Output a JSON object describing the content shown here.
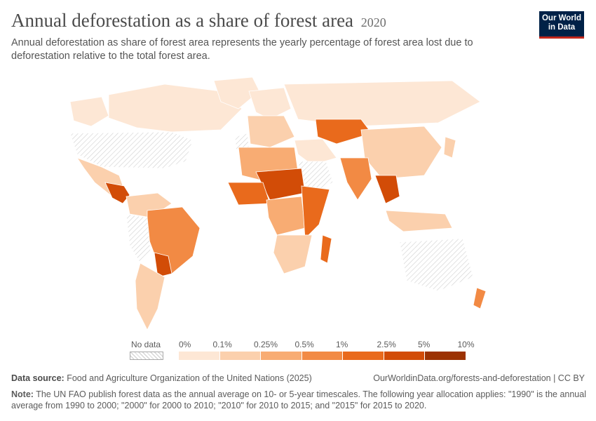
{
  "header": {
    "title": "Annual deforestation as a share of forest area",
    "year": "2020",
    "subtitle": "Annual deforestation as share of forest area represents the yearly percentage of forest area lost due to deforestation relative to the total forest area.",
    "logo_line1": "Our World",
    "logo_line2": "in Data"
  },
  "legend": {
    "no_data_label": "No data",
    "bins": [
      {
        "label": "0%",
        "color": "#fde7d5"
      },
      {
        "label": "0.1%",
        "color": "#fbd0ad"
      },
      {
        "label": "0.25%",
        "color": "#f8ac73"
      },
      {
        "label": "0.5%",
        "color": "#f28a44"
      },
      {
        "label": "1%",
        "color": "#e96a1c"
      },
      {
        "label": "2.5%",
        "color": "#d24c07"
      },
      {
        "label": "5%",
        "color": "#9c3202"
      }
    ],
    "last_label": "10%"
  },
  "footer": {
    "source_label": "Data source:",
    "source_text": "Food and Agriculture Organization of the United Nations (2025)",
    "url": "OurWorldinData.org/forests-and-deforestation | CC BY",
    "note_label": "Note:",
    "note_text": "The UN FAO publish forest data as the annual average on 10- or 5-year timescales. The following year allocation applies: \"1990\" is the annual average from 1990 to 2000; \"2000\" for 2000 to 2010; \"2010\" for 2010 to 2015; and \"2015\" for 2015 to 2020."
  },
  "map": {
    "regions": [
      {
        "name": "canada",
        "color": "#fde7d5"
      },
      {
        "name": "alaska",
        "color": "#fde7d5"
      },
      {
        "name": "greenland",
        "color": "#fde7d5"
      },
      {
        "name": "usa",
        "color": "no-data"
      },
      {
        "name": "mexico",
        "color": "#fbd0ad"
      },
      {
        "name": "central-america",
        "color": "#d24c07"
      },
      {
        "name": "colombia-venezuela",
        "color": "#fbd0ad"
      },
      {
        "name": "brazil",
        "color": "#f28a44"
      },
      {
        "name": "peru-bolivia",
        "color": "no-data"
      },
      {
        "name": "paraguay",
        "color": "#d24c07"
      },
      {
        "name": "argentina-chile",
        "color": "#fbd0ad"
      },
      {
        "name": "europe-north",
        "color": "#fde7d5"
      },
      {
        "name": "europe-south",
        "color": "#fbd0ad"
      },
      {
        "name": "iberia",
        "color": "no-data"
      },
      {
        "name": "russia",
        "color": "#fde7d5"
      },
      {
        "name": "kazakhstan",
        "color": "#e96a1c"
      },
      {
        "name": "china",
        "color": "#fbd0ad"
      },
      {
        "name": "middle-east",
        "color": "#fde7d5"
      },
      {
        "name": "arabia",
        "color": "no-data"
      },
      {
        "name": "india",
        "color": "#f28a44"
      },
      {
        "name": "southeast-asia",
        "color": "#d24c07"
      },
      {
        "name": "indonesia",
        "color": "#fbd0ad"
      },
      {
        "name": "australia",
        "color": "no-data"
      },
      {
        "name": "new-zealand",
        "color": "#f28a44"
      },
      {
        "name": "north-africa",
        "color": "#f8ac73"
      },
      {
        "name": "sahel",
        "color": "#d24c07"
      },
      {
        "name": "west-africa",
        "color": "#e96a1c"
      },
      {
        "name": "central-africa",
        "color": "#f8ac73"
      },
      {
        "name": "east-africa",
        "color": "#e96a1c"
      },
      {
        "name": "southern-africa",
        "color": "#fbd0ad"
      },
      {
        "name": "madagascar",
        "color": "#e96a1c"
      },
      {
        "name": "japan",
        "color": "#fbd0ad"
      }
    ]
  }
}
